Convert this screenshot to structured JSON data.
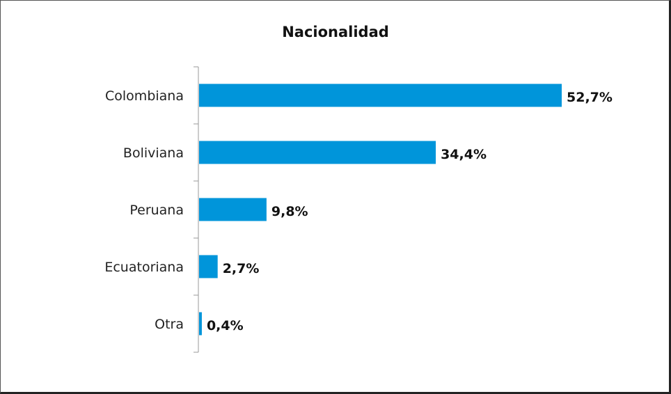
{
  "chart_data": {
    "type": "bar",
    "orientation": "horizontal",
    "title": "Nacionalidad",
    "categories": [
      "Colombiana",
      "Boliviana",
      "Peruana",
      "Ecuatoriana",
      "Otra"
    ],
    "values": [
      52.7,
      34.4,
      9.8,
      2.7,
      0.4
    ],
    "value_labels": [
      "52,7%",
      "34,4%",
      "9,8%",
      "2,7%",
      "0,4%"
    ],
    "xlim": [
      0,
      52.7
    ],
    "xlabel": "",
    "ylabel": "",
    "grid": false,
    "legend": "none",
    "bar_color": "#0095DA"
  }
}
